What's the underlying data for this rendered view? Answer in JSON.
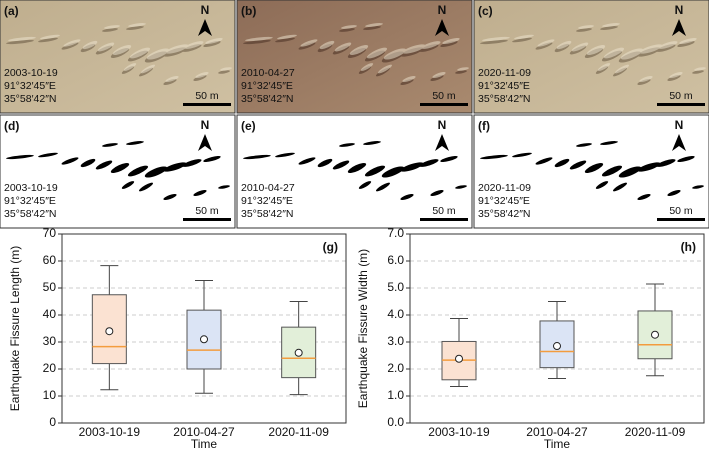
{
  "panels": [
    {
      "label": "(a)",
      "date": "2003-10-19",
      "lon": "91°32′45″E",
      "lat": "35°58′42″N",
      "scale": "50 m",
      "north": "N"
    },
    {
      "label": "(b)",
      "date": "2010-04-27",
      "lon": "91°32′45″E",
      "lat": "35°58′42″N",
      "scale": "50 m",
      "north": "N"
    },
    {
      "label": "(c)",
      "date": "2020-11-09",
      "lon": "91°32′45″E",
      "lat": "35°58′42″N",
      "scale": "50 m",
      "north": "N"
    },
    {
      "label": "(d)",
      "date": "2003-10-19",
      "lon": "91°32′45″E",
      "lat": "35°58′42″N",
      "scale": "50 m",
      "north": "N"
    },
    {
      "label": "(e)",
      "date": "2010-04-27",
      "lon": "91°32′45″E",
      "lat": "35°58′42″N",
      "scale": "50 m",
      "north": "N"
    },
    {
      "label": "(f)",
      "date": "2020-11-09",
      "lon": "91°32′45″E",
      "lat": "35°58′42″N",
      "scale": "50 m",
      "north": "N"
    }
  ],
  "chart_data": [
    {
      "type": "box",
      "panel_label": "(g)",
      "x_label": "Time",
      "y_label": "Earthquake Fissure Length (m)",
      "categories": [
        "2003-10-19",
        "2010-04-27",
        "2020-11-09"
      ],
      "colors": [
        "#fbe2d2",
        "#dbe4f5",
        "#e2efd9"
      ],
      "median_color": "#f39c3e",
      "whisker_low": [
        12.3,
        11,
        10.5
      ],
      "q1": [
        22,
        20,
        16.8
      ],
      "median": [
        28.3,
        27,
        24
      ],
      "q3": [
        47.5,
        41.8,
        35.5
      ],
      "whisker_high": [
        58.3,
        52.8,
        45
      ],
      "mean": [
        34,
        31,
        26
      ],
      "ylim": [
        0,
        70
      ],
      "yticks": [
        0,
        10,
        20,
        30,
        40,
        50,
        60,
        70
      ],
      "grid": true
    },
    {
      "type": "box",
      "panel_label": "(h)",
      "x_label": "Time",
      "y_label": "Earthquake Fissure Width (m)",
      "categories": [
        "2003-10-19",
        "2010-04-27",
        "2020-11-09"
      ],
      "colors": [
        "#fbe2d2",
        "#dbe4f5",
        "#e2efd9"
      ],
      "median_color": "#f39c3e",
      "whisker_low": [
        1.35,
        1.65,
        1.75
      ],
      "q1": [
        1.6,
        2.05,
        2.38
      ],
      "median": [
        2.33,
        2.65,
        2.9
      ],
      "q3": [
        3.02,
        3.78,
        4.15
      ],
      "whisker_high": [
        3.87,
        4.5,
        5.15
      ],
      "mean": [
        2.38,
        2.85,
        3.27
      ],
      "ylim": [
        0,
        7
      ],
      "yticks": [
        {
          "value": 0,
          "label": "0.0"
        },
        {
          "value": 1,
          "label": "1.0"
        },
        {
          "value": 2,
          "label": "2.0"
        },
        {
          "value": 3,
          "label": "3.0"
        },
        {
          "value": 4,
          "label": "4.0"
        },
        {
          "value": 5,
          "label": "5.0"
        },
        {
          "value": 6,
          "label": "6.0"
        },
        {
          "value": 7,
          "label": "7.0"
        }
      ],
      "grid": true
    }
  ]
}
